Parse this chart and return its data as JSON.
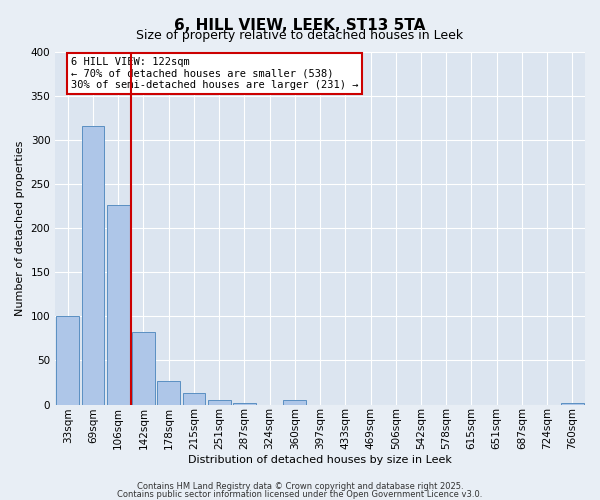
{
  "title": "6, HILL VIEW, LEEK, ST13 5TA",
  "subtitle": "Size of property relative to detached houses in Leek",
  "xlabel": "Distribution of detached houses by size in Leek",
  "ylabel": "Number of detached properties",
  "categories": [
    "33sqm",
    "69sqm",
    "106sqm",
    "142sqm",
    "178sqm",
    "215sqm",
    "251sqm",
    "287sqm",
    "324sqm",
    "360sqm",
    "397sqm",
    "433sqm",
    "469sqm",
    "506sqm",
    "542sqm",
    "578sqm",
    "615sqm",
    "651sqm",
    "687sqm",
    "724sqm",
    "760sqm"
  ],
  "values": [
    100,
    316,
    226,
    82,
    27,
    13,
    5,
    2,
    0,
    5,
    0,
    0,
    0,
    0,
    0,
    0,
    0,
    0,
    0,
    0,
    2
  ],
  "bar_color": "#aec6e8",
  "bar_edge_color": "#5a8fc2",
  "vline_pos": 2.5,
  "vline_color": "#cc0000",
  "ylim": [
    0,
    400
  ],
  "yticks": [
    0,
    50,
    100,
    150,
    200,
    250,
    300,
    350,
    400
  ],
  "annotation_text": "6 HILL VIEW: 122sqm\n← 70% of detached houses are smaller (538)\n30% of semi-detached houses are larger (231) →",
  "annotation_box_facecolor": "#ffffff",
  "annotation_box_edgecolor": "#cc0000",
  "footer_line1": "Contains HM Land Registry data © Crown copyright and database right 2025.",
  "footer_line2": "Contains public sector information licensed under the Open Government Licence v3.0.",
  "fig_bg_color": "#e8eef5",
  "plot_bg_color": "#dce5f0",
  "grid_color": "#ffffff",
  "title_fontsize": 11,
  "subtitle_fontsize": 9,
  "ylabel_fontsize": 8,
  "xlabel_fontsize": 8,
  "tick_fontsize": 7.5,
  "footer_fontsize": 6
}
